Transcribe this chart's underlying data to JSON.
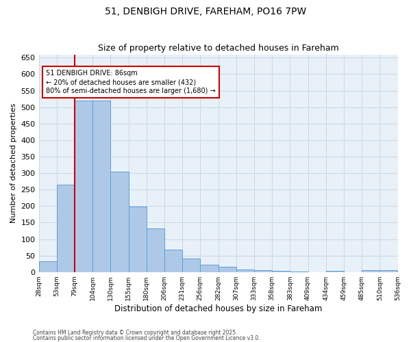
{
  "title1": "51, DENBIGH DRIVE, FAREHAM, PO16 7PW",
  "title2": "Size of property relative to detached houses in Fareham",
  "xlabel": "Distribution of detached houses by size in Fareham",
  "ylabel": "Number of detached properties",
  "bin_labels": [
    "28sqm",
    "53sqm",
    "79sqm",
    "104sqm",
    "130sqm",
    "155sqm",
    "180sqm",
    "206sqm",
    "231sqm",
    "256sqm",
    "282sqm",
    "307sqm",
    "333sqm",
    "358sqm",
    "383sqm",
    "409sqm",
    "434sqm",
    "459sqm",
    "485sqm",
    "510sqm",
    "536sqm"
  ],
  "n_bins": 20,
  "bar_heights": [
    32,
    265,
    520,
    520,
    305,
    198,
    133,
    67,
    40,
    22,
    15,
    8,
    5,
    3,
    1,
    0,
    4,
    0,
    5,
    5
  ],
  "bar_color": "#aec9e8",
  "bar_edge_color": "#5a9fd4",
  "property_bin": 2,
  "red_line_color": "#cc0000",
  "annotation_line1": "51 DENBIGH DRIVE: 86sqm",
  "annotation_line2": "← 20% of detached houses are smaller (432)",
  "annotation_line3": "80% of semi-detached houses are larger (1,680) →",
  "annotation_box_color": "#ffffff",
  "annotation_box_edge_color": "#cc0000",
  "grid_color": "#c8d8e8",
  "bg_color": "#e8f0f8",
  "ylim": [
    0,
    660
  ],
  "yticks": [
    0,
    50,
    100,
    150,
    200,
    250,
    300,
    350,
    400,
    450,
    500,
    550,
    600,
    650
  ],
  "footer1": "Contains HM Land Registry data © Crown copyright and database right 2025.",
  "footer2": "Contains public sector information licensed under the Open Government Licence v3.0."
}
